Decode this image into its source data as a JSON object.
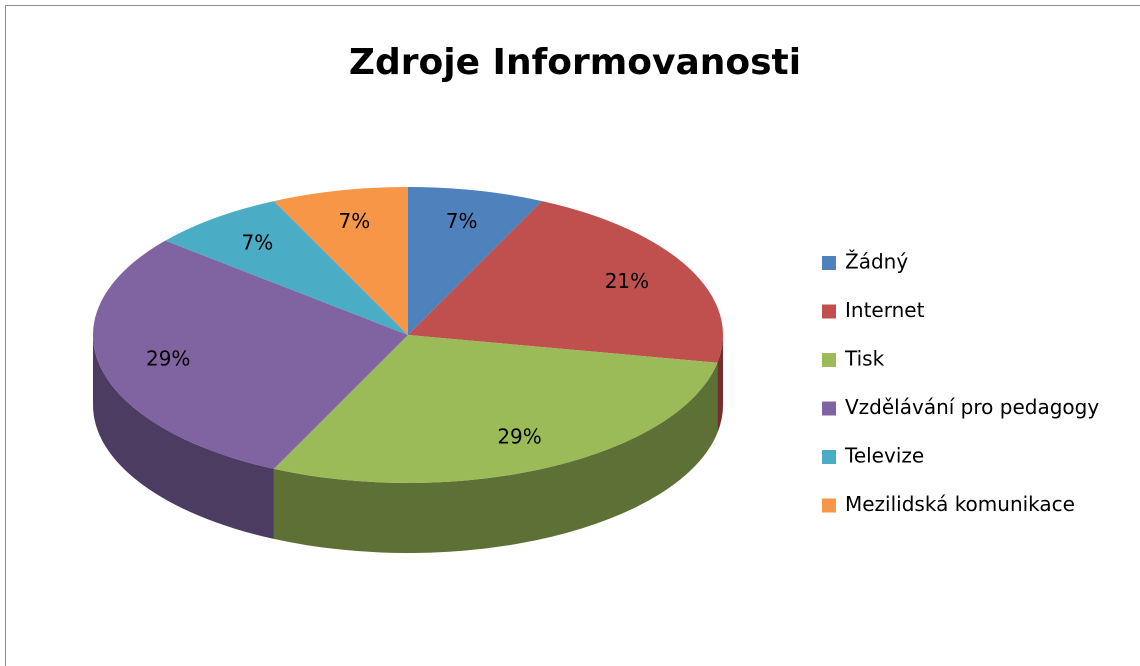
{
  "chart_data": {
    "type": "pie3d",
    "title": "Zdroje Informovanosti",
    "categories": [
      "Žádný",
      "Internet",
      "Tisk",
      "Vzdělávání pro pedagogy",
      "Televize",
      "Mezilidská komunikace"
    ],
    "values": [
      7,
      21,
      29,
      29,
      7,
      7
    ],
    "value_labels": [
      "7%",
      "21%",
      "29%",
      "29%",
      "7%",
      "7%"
    ],
    "colors": [
      "#4f81bd",
      "#c0504d",
      "#9bbb59",
      "#8064a2",
      "#4bacc6",
      "#f79646"
    ],
    "legend": "right"
  }
}
